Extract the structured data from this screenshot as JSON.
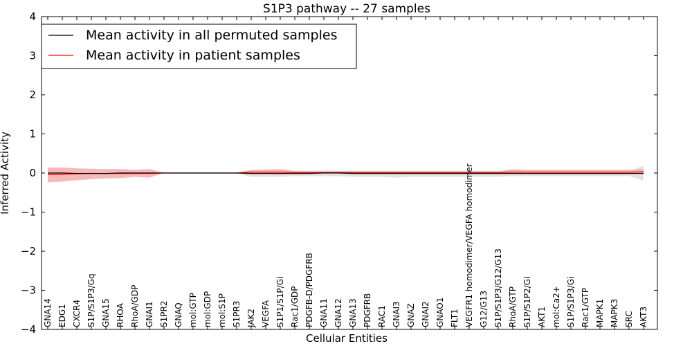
{
  "chart_data": {
    "type": "line",
    "title": "S1P3 pathway -- 27 samples",
    "xlabel": "Cellular Entities",
    "ylabel": "Inferred Activity",
    "ylim": [
      -4,
      4
    ],
    "yticks": [
      -4,
      -3,
      -2,
      -1,
      0,
      1,
      2,
      3,
      4
    ],
    "ytick_labels": [
      "−4",
      "−3",
      "−2",
      "−1",
      "0",
      "1",
      "2",
      "3",
      "4"
    ],
    "legend_position": "top-left",
    "categories": [
      "GNA14",
      "EDG1",
      "CXCR4",
      "S1P/S1P3/Gq",
      "GNA15",
      "RHOA",
      "RhoA/GDP",
      "GNAI1",
      "S1PR2",
      "GNAQ",
      "mol:GTP",
      "mol:GDP",
      "mol:S1P",
      "S1PR3",
      "JAK2",
      "VEGFA",
      "S1P1/S1P/Gi",
      "Rac1/GDP",
      "PDGFB-D/PDGFRB",
      "GNA11",
      "GNA12",
      "GNA13",
      "PDGFRB",
      "RAC1",
      "GNAI3",
      "GNAZ",
      "GNAI2",
      "GNAO1",
      "FLT1",
      "VEGFR1 homodimer/VEGFA homodimer",
      "G12/G13",
      "S1P/S1P3/G12/G13",
      "RhoA/GTP",
      "S1P/S1P2/Gi",
      "AKT1",
      "mol:Ca2+",
      "S1P/S1P3/Gi",
      "Rac1/GTP",
      "MAPK1",
      "MAPK3",
      "SRC",
      "AKT3"
    ],
    "series": [
      {
        "name": "Mean activity in all permuted samples",
        "color": "#000000",
        "band_color": "#d9d9d9",
        "values": [
          0.0,
          0.0,
          -0.01,
          -0.01,
          -0.01,
          0.0,
          0.0,
          0.0,
          0.0,
          0.0,
          0.0,
          0.0,
          0.0,
          0.0,
          -0.01,
          -0.01,
          -0.01,
          -0.01,
          -0.01,
          0.0,
          0.0,
          -0.01,
          -0.01,
          -0.01,
          -0.01,
          -0.01,
          -0.01,
          -0.01,
          -0.01,
          -0.01,
          -0.01,
          -0.01,
          -0.01,
          -0.01,
          -0.01,
          -0.01,
          -0.01,
          -0.01,
          -0.01,
          -0.01,
          -0.01,
          -0.01
        ],
        "lower": [
          -0.02,
          -0.02,
          -0.03,
          -0.03,
          -0.03,
          -0.02,
          -0.02,
          -0.01,
          0.0,
          0.0,
          0.0,
          0.0,
          0.0,
          -0.01,
          -0.1,
          -0.1,
          -0.1,
          -0.08,
          -0.08,
          -0.08,
          -0.08,
          -0.1,
          -0.1,
          -0.1,
          -0.12,
          -0.1,
          -0.1,
          -0.1,
          -0.1,
          -0.1,
          -0.1,
          -0.1,
          -0.08,
          -0.08,
          -0.08,
          -0.08,
          -0.08,
          -0.08,
          -0.08,
          -0.08,
          -0.08,
          -0.2
        ],
        "upper": [
          0.02,
          0.02,
          0.02,
          0.02,
          0.02,
          0.02,
          0.02,
          0.01,
          0.0,
          0.0,
          0.0,
          0.0,
          0.0,
          0.01,
          0.06,
          0.06,
          0.06,
          0.06,
          0.06,
          0.06,
          0.06,
          0.06,
          0.06,
          0.06,
          0.06,
          0.06,
          0.06,
          0.06,
          0.06,
          0.06,
          0.06,
          0.06,
          0.06,
          0.06,
          0.06,
          0.06,
          0.06,
          0.06,
          0.06,
          0.06,
          0.06,
          0.18
        ]
      },
      {
        "name": "Mean activity in patient samples",
        "color": "#ff0000",
        "band_color": "#f4a8a8",
        "values": [
          -0.04,
          -0.03,
          -0.02,
          -0.01,
          -0.01,
          -0.01,
          -0.01,
          -0.01,
          0.0,
          0.0,
          0.0,
          0.0,
          0.0,
          0.0,
          0.02,
          0.02,
          0.02,
          0.01,
          0.01,
          0.01,
          0.01,
          0.01,
          0.01,
          0.01,
          0.01,
          0.01,
          0.01,
          0.01,
          0.01,
          0.01,
          0.01,
          0.01,
          0.02,
          0.02,
          0.02,
          0.02,
          0.02,
          0.02,
          0.02,
          0.02,
          0.02,
          0.03
        ],
        "lower": [
          -0.24,
          -0.22,
          -0.18,
          -0.16,
          -0.14,
          -0.13,
          -0.1,
          -0.12,
          0.0,
          0.0,
          0.0,
          0.0,
          0.0,
          -0.01,
          -0.03,
          -0.03,
          -0.03,
          -0.02,
          -0.01,
          -0.01,
          -0.01,
          -0.01,
          -0.01,
          -0.01,
          -0.01,
          -0.01,
          -0.01,
          -0.01,
          -0.01,
          -0.01,
          -0.01,
          -0.01,
          -0.01,
          -0.01,
          -0.01,
          -0.01,
          -0.01,
          -0.01,
          -0.01,
          -0.01,
          -0.01,
          -0.02
        ],
        "upper": [
          0.14,
          0.14,
          0.12,
          0.11,
          0.1,
          0.1,
          0.08,
          0.1,
          0.0,
          0.0,
          0.0,
          0.0,
          0.0,
          0.01,
          0.08,
          0.09,
          0.1,
          0.05,
          0.04,
          0.04,
          0.04,
          0.04,
          0.04,
          0.04,
          0.04,
          0.04,
          0.04,
          0.04,
          0.04,
          0.04,
          0.04,
          0.04,
          0.1,
          0.08,
          0.08,
          0.08,
          0.08,
          0.08,
          0.08,
          0.08,
          0.08,
          0.1
        ]
      }
    ]
  }
}
